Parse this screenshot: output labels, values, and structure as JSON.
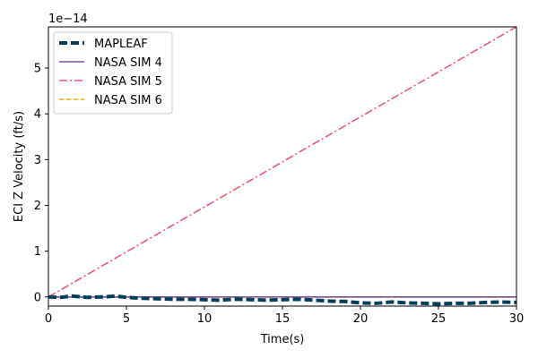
{
  "chart_data": {
    "type": "line",
    "title": "",
    "xlabel": "Time(s)",
    "ylabel": "ECI Z Velocity (ft/s)",
    "y_offset_text": "1e−14",
    "xlim": [
      0,
      30
    ],
    "ylim": [
      -0.2,
      5.9
    ],
    "x_ticks": [
      0,
      5,
      10,
      15,
      20,
      25,
      30
    ],
    "y_ticks": [
      0,
      1,
      2,
      3,
      4,
      5
    ],
    "grid": false,
    "legend_position": "top-left",
    "series": [
      {
        "name": "MAPLEAF",
        "style": "dashed",
        "color": "#003f5c",
        "x": [
          0,
          0.8,
          1.5,
          2.5,
          3.5,
          4.3,
          5,
          6,
          7,
          8,
          9,
          10,
          11,
          12,
          13,
          14,
          15,
          16,
          17,
          18,
          19,
          20,
          21,
          22,
          23,
          24,
          25,
          26,
          27,
          28,
          29,
          30
        ],
        "y": [
          0,
          -0.01,
          0.02,
          -0.01,
          0,
          0.02,
          -0.01,
          -0.03,
          -0.04,
          -0.05,
          -0.05,
          -0.06,
          -0.07,
          -0.05,
          -0.06,
          -0.07,
          -0.06,
          -0.05,
          -0.07,
          -0.09,
          -0.1,
          -0.13,
          -0.14,
          -0.11,
          -0.13,
          -0.14,
          -0.15,
          -0.14,
          -0.14,
          -0.12,
          -0.11,
          -0.12
        ]
      },
      {
        "name": "NASA SIM 4",
        "style": "solid",
        "color": "#7a5195",
        "x": [
          0,
          30
        ],
        "y": [
          0,
          0
        ]
      },
      {
        "name": "NASA SIM 5",
        "style": "dashdot",
        "color": "#ef5675",
        "x": [
          0,
          30
        ],
        "y": [
          0,
          5.9
        ]
      },
      {
        "name": "NASA SIM 6",
        "style": "dashed",
        "color": "#ffa600",
        "x": [
          0,
          30
        ],
        "y": [
          0,
          0
        ]
      }
    ]
  }
}
